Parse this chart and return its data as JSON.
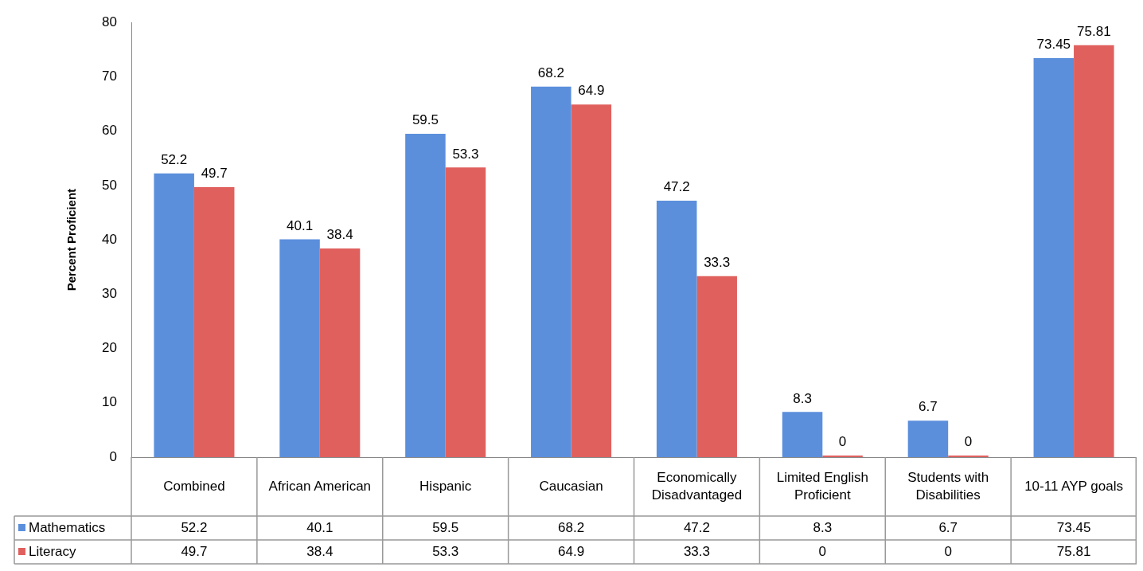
{
  "chart_data": {
    "type": "bar",
    "ylabel": "Percent Proficient",
    "categories": [
      "Combined",
      "African American",
      "Hispanic",
      "Caucasian",
      "Economically Disadvantaged",
      "Limited English Proficient",
      "Students with Disabilities",
      "10-11 AYP goals"
    ],
    "series": [
      {
        "name": "Mathematics",
        "color": "#5b8fdc",
        "values": [
          52.2,
          40.1,
          59.5,
          68.2,
          47.2,
          8.3,
          6.7,
          73.45
        ],
        "value_labels": [
          "52.2",
          "40.1",
          "59.5",
          "68.2",
          "47.2",
          "8.3",
          "6.7",
          "73.45"
        ]
      },
      {
        "name": "Literacy",
        "color": "#e0605e",
        "values": [
          49.7,
          38.4,
          53.3,
          64.9,
          33.3,
          0,
          0,
          75.81
        ],
        "value_labels": [
          "49.7",
          "38.4",
          "53.3",
          "64.9",
          "33.3",
          "0",
          "0",
          "75.81"
        ]
      }
    ],
    "annotations": [
      "52.2",
      "40.1",
      "59.5",
      "68.2",
      "47.2",
      "8.3",
      "6.7",
      "73.45",
      "49.7",
      "38.4",
      "53.3",
      "64.9",
      "33.3",
      "0",
      "0",
      "75.81"
    ],
    "ylim": [
      0,
      80
    ],
    "yticks": [
      0,
      10,
      20,
      30,
      40,
      50,
      60,
      70,
      80
    ],
    "grid": false,
    "legend": "bottom left"
  }
}
